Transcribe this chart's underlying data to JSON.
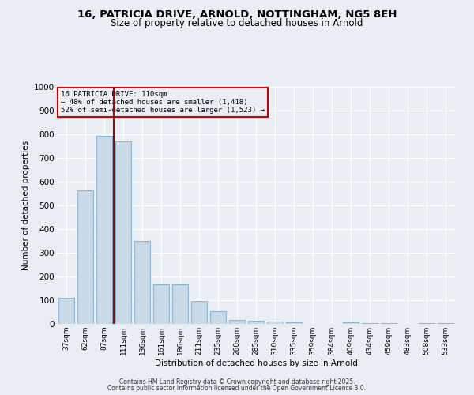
{
  "title_line1": "16, PATRICIA DRIVE, ARNOLD, NOTTINGHAM, NG5 8EH",
  "title_line2": "Size of property relative to detached houses in Arnold",
  "categories": [
    "37sqm",
    "62sqm",
    "87sqm",
    "111sqm",
    "136sqm",
    "161sqm",
    "186sqm",
    "211sqm",
    "235sqm",
    "260sqm",
    "285sqm",
    "310sqm",
    "335sqm",
    "359sqm",
    "384sqm",
    "409sqm",
    "434sqm",
    "459sqm",
    "483sqm",
    "508sqm",
    "533sqm"
  ],
  "values": [
    110,
    565,
    795,
    770,
    350,
    167,
    167,
    98,
    55,
    18,
    13,
    11,
    8,
    0,
    0,
    8,
    5,
    3,
    0,
    5,
    5
  ],
  "bar_color": "#c9d9e8",
  "bar_edge_color": "#7aaac8",
  "ylabel": "Number of detached properties",
  "xlabel": "Distribution of detached houses by size in Arnold",
  "ylim": [
    0,
    1000
  ],
  "yticks": [
    0,
    100,
    200,
    300,
    400,
    500,
    600,
    700,
    800,
    900,
    1000
  ],
  "vline_x": 2.5,
  "vline_color": "#aa0000",
  "annotation_title": "16 PATRICIA DRIVE: 110sqm",
  "annotation_line1": "← 48% of detached houses are smaller (1,418)",
  "annotation_line2": "52% of semi-detached houses are larger (1,523) →",
  "annotation_box_color": "#cc0000",
  "background_color": "#e8eef4",
  "grid_color": "#ffffff",
  "footer_line1": "Contains HM Land Registry data © Crown copyright and database right 2025.",
  "footer_line2": "Contains public sector information licensed under the Open Government Licence 3.0."
}
